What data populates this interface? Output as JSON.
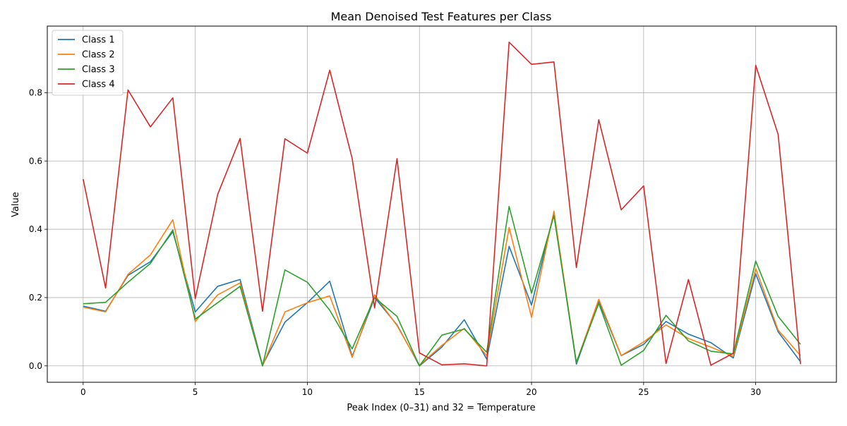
{
  "chart_data": {
    "type": "line",
    "title": "Mean Denoised Test Features per Class",
    "xlabel": "Peak Index (0–31) and 32 = Temperature",
    "ylabel": "Value",
    "xlim": [
      -1.6,
      33.6
    ],
    "ylim": [
      -0.048,
      0.995
    ],
    "xticks": [
      0,
      5,
      10,
      15,
      20,
      25,
      30
    ],
    "xtick_labels": [
      "0",
      "5",
      "10",
      "15",
      "20",
      "25",
      "30"
    ],
    "yticks": [
      0.0,
      0.2,
      0.4,
      0.6,
      0.8
    ],
    "ytick_labels": [
      "0.0",
      "0.2",
      "0.4",
      "0.6",
      "0.8"
    ],
    "grid": true,
    "legend_position": "top-left",
    "x": [
      0,
      1,
      2,
      3,
      4,
      5,
      6,
      7,
      8,
      9,
      10,
      11,
      12,
      13,
      14,
      15,
      16,
      17,
      18,
      19,
      20,
      21,
      22,
      23,
      24,
      25,
      26,
      27,
      28,
      29,
      30,
      31,
      32
    ],
    "series": [
      {
        "name": "Class 1",
        "color": "#1f77b4",
        "values": [
          0.175,
          0.16,
          0.265,
          0.305,
          0.393,
          0.158,
          0.233,
          0.253,
          0.002,
          0.128,
          0.185,
          0.248,
          0.028,
          0.2,
          0.12,
          0.0,
          0.055,
          0.135,
          0.02,
          0.35,
          0.178,
          0.448,
          0.005,
          0.188,
          0.03,
          0.063,
          0.13,
          0.093,
          0.068,
          0.023,
          0.27,
          0.1,
          0.012
        ]
      },
      {
        "name": "Class 2",
        "color": "#ff7f0e",
        "values": [
          0.172,
          0.158,
          0.268,
          0.325,
          0.428,
          0.13,
          0.208,
          0.243,
          0.0,
          0.158,
          0.185,
          0.205,
          0.025,
          0.208,
          0.118,
          0.002,
          0.06,
          0.11,
          0.03,
          0.405,
          0.142,
          0.453,
          0.01,
          0.195,
          0.03,
          0.07,
          0.12,
          0.08,
          0.055,
          0.028,
          0.285,
          0.105,
          0.03
        ]
      },
      {
        "name": "Class 3",
        "color": "#2ca02c",
        "values": [
          0.182,
          0.186,
          0.245,
          0.3,
          0.398,
          0.137,
          0.185,
          0.233,
          0.0,
          0.281,
          0.245,
          0.163,
          0.05,
          0.2,
          0.145,
          0.0,
          0.09,
          0.108,
          0.04,
          0.467,
          0.213,
          0.44,
          0.01,
          0.183,
          0.002,
          0.045,
          0.148,
          0.073,
          0.043,
          0.035,
          0.307,
          0.145,
          0.063
        ]
      },
      {
        "name": "Class 4",
        "color": "#d62728",
        "values": [
          0.547,
          0.228,
          0.808,
          0.7,
          0.785,
          0.197,
          0.502,
          0.666,
          0.16,
          0.665,
          0.623,
          0.866,
          0.607,
          0.17,
          0.607,
          0.038,
          0.003,
          0.006,
          0.0,
          0.948,
          0.883,
          0.89,
          0.288,
          0.721,
          0.457,
          0.527,
          0.007,
          0.253,
          0.002,
          0.037,
          0.88,
          0.678,
          0.005
        ]
      }
    ]
  }
}
